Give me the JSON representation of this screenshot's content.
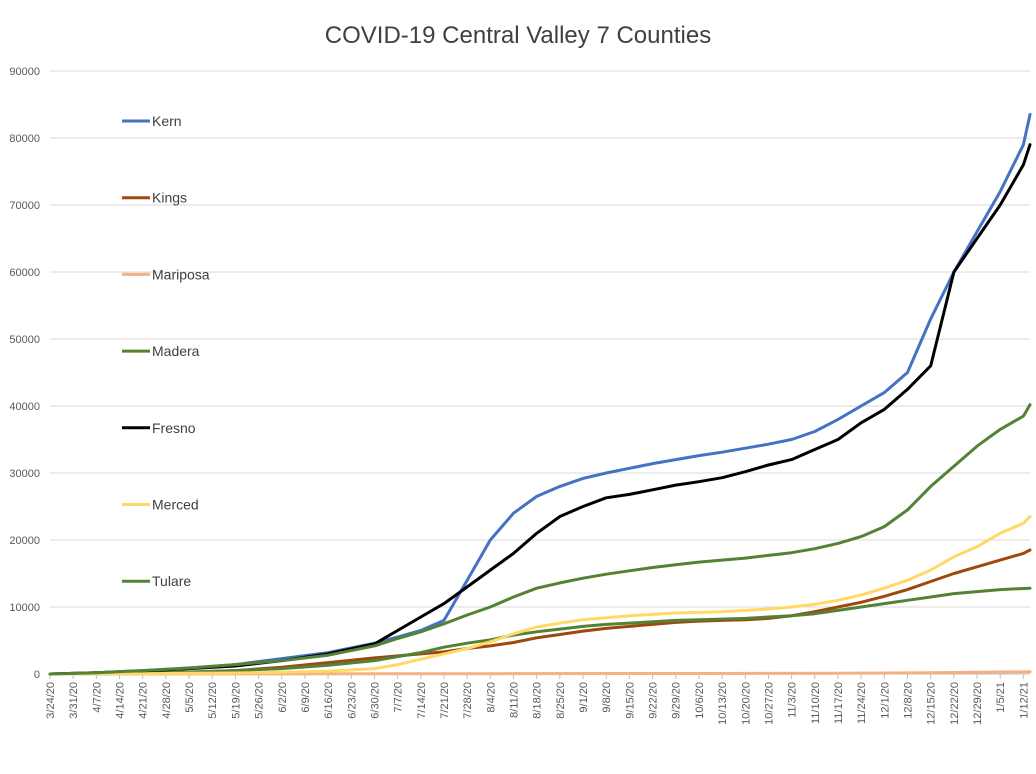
{
  "chart_data": {
    "type": "line",
    "title": "COVID-19 Central Valley 7 Counties",
    "xlabel": "",
    "ylabel": "",
    "ylim": [
      0,
      90000
    ],
    "yticks": [
      0,
      10000,
      20000,
      30000,
      40000,
      50000,
      60000,
      70000,
      80000,
      90000
    ],
    "grid": true,
    "legend_position": "left",
    "x_start": "3/24/20",
    "x_end": "1/14/21",
    "x_ticks": [
      "3/24/20",
      "3/31/20",
      "4/7/20",
      "4/14/20",
      "4/21/20",
      "4/28/20",
      "5/5/20",
      "5/12/20",
      "5/19/20",
      "5/26/20",
      "6/2/20",
      "6/9/20",
      "6/16/20",
      "6/23/20",
      "6/30/20",
      "7/7/20",
      "7/14/20",
      "7/21/20",
      "7/28/20",
      "8/4/20",
      "8/11/20",
      "8/18/20",
      "8/25/20",
      "9/1/20",
      "9/8/20",
      "9/15/20",
      "9/22/20",
      "9/29/20",
      "10/6/20",
      "10/13/20",
      "10/20/20",
      "10/27/20",
      "11/3/20",
      "11/10/20",
      "11/17/20",
      "11/24/20",
      "12/1/20",
      "12/8/20",
      "12/15/20",
      "12/22/20",
      "12/29/20",
      "1/5/21",
      "1/12/21"
    ],
    "series": [
      {
        "name": "Kern",
        "color": "#4472C4",
        "points": [
          [
            "3/24/20",
            0
          ],
          [
            "4/7/20",
            200
          ],
          [
            "4/21/20",
            500
          ],
          [
            "5/5/20",
            900
          ],
          [
            "5/19/20",
            1400
          ],
          [
            "6/2/20",
            2300
          ],
          [
            "6/16/20",
            3200
          ],
          [
            "6/30/20",
            4600
          ],
          [
            "7/7/20",
            5500
          ],
          [
            "7/14/20",
            6500
          ],
          [
            "7/21/20",
            8000
          ],
          [
            "7/28/20",
            14000
          ],
          [
            "8/4/20",
            20000
          ],
          [
            "8/11/20",
            24000
          ],
          [
            "8/18/20",
            26500
          ],
          [
            "8/25/20",
            28000
          ],
          [
            "9/1/20",
            29200
          ],
          [
            "9/8/20",
            30000
          ],
          [
            "9/15/20",
            30700
          ],
          [
            "9/22/20",
            31400
          ],
          [
            "9/29/20",
            32000
          ],
          [
            "10/6/20",
            32600
          ],
          [
            "10/13/20",
            33100
          ],
          [
            "10/20/20",
            33700
          ],
          [
            "10/27/20",
            34300
          ],
          [
            "11/3/20",
            35000
          ],
          [
            "11/10/20",
            36200
          ],
          [
            "11/17/20",
            38000
          ],
          [
            "11/24/20",
            40000
          ],
          [
            "12/1/20",
            42000
          ],
          [
            "12/8/20",
            45000
          ],
          [
            "12/15/20",
            53000
          ],
          [
            "12/22/20",
            60000
          ],
          [
            "12/29/20",
            66000
          ],
          [
            "1/5/21",
            72000
          ],
          [
            "1/12/21",
            79000
          ],
          [
            "1/14/21",
            83500
          ]
        ]
      },
      {
        "name": "Kings",
        "color": "#9E480E",
        "points": [
          [
            "3/24/20",
            0
          ],
          [
            "4/7/20",
            50
          ],
          [
            "4/21/20",
            100
          ],
          [
            "5/5/20",
            250
          ],
          [
            "5/19/20",
            500
          ],
          [
            "6/2/20",
            1000
          ],
          [
            "6/16/20",
            1700
          ],
          [
            "6/30/20",
            2400
          ],
          [
            "7/7/20",
            2700
          ],
          [
            "7/14/20",
            3000
          ],
          [
            "7/21/20",
            3300
          ],
          [
            "7/28/20",
            3800
          ],
          [
            "8/4/20",
            4200
          ],
          [
            "8/11/20",
            4700
          ],
          [
            "8/18/20",
            5400
          ],
          [
            "8/25/20",
            5900
          ],
          [
            "9/1/20",
            6400
          ],
          [
            "9/8/20",
            6800
          ],
          [
            "9/15/20",
            7100
          ],
          [
            "9/22/20",
            7400
          ],
          [
            "9/29/20",
            7700
          ],
          [
            "10/6/20",
            7900
          ],
          [
            "10/13/20",
            8000
          ],
          [
            "10/20/20",
            8100
          ],
          [
            "10/27/20",
            8300
          ],
          [
            "11/3/20",
            8700
          ],
          [
            "11/10/20",
            9300
          ],
          [
            "11/17/20",
            10000
          ],
          [
            "11/24/20",
            10700
          ],
          [
            "12/1/20",
            11600
          ],
          [
            "12/8/20",
            12600
          ],
          [
            "12/15/20",
            13800
          ],
          [
            "12/22/20",
            15000
          ],
          [
            "12/29/20",
            16000
          ],
          [
            "1/5/21",
            17000
          ],
          [
            "1/12/21",
            18000
          ],
          [
            "1/14/21",
            18500
          ]
        ]
      },
      {
        "name": "Mariposa",
        "color": "#F4B183",
        "points": [
          [
            "3/24/20",
            0
          ],
          [
            "6/2/20",
            10
          ],
          [
            "8/4/20",
            40
          ],
          [
            "10/6/20",
            70
          ],
          [
            "11/17/20",
            100
          ],
          [
            "12/15/20",
            180
          ],
          [
            "1/5/21",
            300
          ],
          [
            "1/14/21",
            350
          ]
        ]
      },
      {
        "name": "Madera",
        "color": "#548235",
        "points": [
          [
            "3/24/20",
            0
          ],
          [
            "4/7/20",
            50
          ],
          [
            "4/21/20",
            150
          ],
          [
            "5/5/20",
            300
          ],
          [
            "5/19/20",
            500
          ],
          [
            "6/2/20",
            800
          ],
          [
            "6/16/20",
            1300
          ],
          [
            "6/30/20",
            2000
          ],
          [
            "7/7/20",
            2600
          ],
          [
            "7/14/20",
            3200
          ],
          [
            "7/21/20",
            4000
          ],
          [
            "7/28/20",
            4600
          ],
          [
            "8/4/20",
            5100
          ],
          [
            "8/11/20",
            5800
          ],
          [
            "8/18/20",
            6300
          ],
          [
            "8/25/20",
            6700
          ],
          [
            "9/1/20",
            7100
          ],
          [
            "9/8/20",
            7400
          ],
          [
            "9/15/20",
            7600
          ],
          [
            "9/22/20",
            7800
          ],
          [
            "9/29/20",
            8000
          ],
          [
            "10/6/20",
            8100
          ],
          [
            "10/13/20",
            8200
          ],
          [
            "10/20/20",
            8300
          ],
          [
            "10/27/20",
            8500
          ],
          [
            "11/3/20",
            8700
          ],
          [
            "11/10/20",
            9000
          ],
          [
            "11/17/20",
            9500
          ],
          [
            "11/24/20",
            10000
          ],
          [
            "12/1/20",
            10500
          ],
          [
            "12/8/20",
            11000
          ],
          [
            "12/15/20",
            11500
          ],
          [
            "12/22/20",
            12000
          ],
          [
            "12/29/20",
            12300
          ],
          [
            "1/5/21",
            12600
          ],
          [
            "1/14/21",
            12800
          ]
        ]
      },
      {
        "name": "Fresno",
        "color": "#000000",
        "points": [
          [
            "3/24/20",
            0
          ],
          [
            "4/7/20",
            200
          ],
          [
            "4/21/20",
            450
          ],
          [
            "5/5/20",
            800
          ],
          [
            "5/19/20",
            1200
          ],
          [
            "6/2/20",
            2000
          ],
          [
            "6/16/20",
            3000
          ],
          [
            "6/30/20",
            4500
          ],
          [
            "7/7/20",
            6500
          ],
          [
            "7/14/20",
            8500
          ],
          [
            "7/21/20",
            10500
          ],
          [
            "7/28/20",
            13000
          ],
          [
            "8/4/20",
            15500
          ],
          [
            "8/11/20",
            18000
          ],
          [
            "8/18/20",
            21000
          ],
          [
            "8/25/20",
            23500
          ],
          [
            "9/1/20",
            25000
          ],
          [
            "9/8/20",
            26300
          ],
          [
            "9/15/20",
            26800
          ],
          [
            "9/22/20",
            27500
          ],
          [
            "9/29/20",
            28200
          ],
          [
            "10/6/20",
            28700
          ],
          [
            "10/13/20",
            29300
          ],
          [
            "10/20/20",
            30200
          ],
          [
            "10/27/20",
            31200
          ],
          [
            "11/3/20",
            32000
          ],
          [
            "11/10/20",
            33500
          ],
          [
            "11/17/20",
            35000
          ],
          [
            "11/24/20",
            37500
          ],
          [
            "12/1/20",
            39500
          ],
          [
            "12/8/20",
            42500
          ],
          [
            "12/15/20",
            46000
          ],
          [
            "12/22/20",
            60000
          ],
          [
            "12/29/20",
            65000
          ],
          [
            "1/5/21",
            70000
          ],
          [
            "1/12/21",
            76000
          ],
          [
            "1/14/21",
            79000
          ]
        ]
      },
      {
        "name": "Merced",
        "color": "#FFD966",
        "points": [
          [
            "3/24/20",
            0
          ],
          [
            "4/7/20",
            20
          ],
          [
            "4/21/20",
            50
          ],
          [
            "5/5/20",
            100
          ],
          [
            "5/19/20",
            150
          ],
          [
            "6/2/20",
            250
          ],
          [
            "6/16/20",
            400
          ],
          [
            "6/30/20",
            800
          ],
          [
            "7/7/20",
            1400
          ],
          [
            "7/14/20",
            2200
          ],
          [
            "7/21/20",
            3000
          ],
          [
            "7/28/20",
            3800
          ],
          [
            "8/4/20",
            4800
          ],
          [
            "8/11/20",
            6000
          ],
          [
            "8/18/20",
            7000
          ],
          [
            "8/25/20",
            7600
          ],
          [
            "9/1/20",
            8100
          ],
          [
            "9/8/20",
            8400
          ],
          [
            "9/15/20",
            8700
          ],
          [
            "9/22/20",
            8900
          ],
          [
            "9/29/20",
            9100
          ],
          [
            "10/6/20",
            9200
          ],
          [
            "10/13/20",
            9300
          ],
          [
            "10/20/20",
            9500
          ],
          [
            "10/27/20",
            9700
          ],
          [
            "11/3/20",
            10000
          ],
          [
            "11/10/20",
            10400
          ],
          [
            "11/17/20",
            11000
          ],
          [
            "11/24/20",
            11800
          ],
          [
            "12/1/20",
            12800
          ],
          [
            "12/8/20",
            14000
          ],
          [
            "12/15/20",
            15500
          ],
          [
            "12/22/20",
            17500
          ],
          [
            "12/29/20",
            19000
          ],
          [
            "1/5/21",
            21000
          ],
          [
            "1/12/21",
            22500
          ],
          [
            "1/14/21",
            23500
          ]
        ]
      },
      {
        "name": "Tulare",
        "color": "#548235",
        "points": [
          [
            "3/24/20",
            0
          ],
          [
            "4/7/20",
            200
          ],
          [
            "4/21/20",
            500
          ],
          [
            "5/5/20",
            900
          ],
          [
            "5/19/20",
            1400
          ],
          [
            "6/2/20",
            2000
          ],
          [
            "6/16/20",
            2800
          ],
          [
            "6/30/20",
            4200
          ],
          [
            "7/7/20",
            5300
          ],
          [
            "7/14/20",
            6300
          ],
          [
            "7/21/20",
            7500
          ],
          [
            "7/28/20",
            8800
          ],
          [
            "8/4/20",
            10000
          ],
          [
            "8/11/20",
            11500
          ],
          [
            "8/18/20",
            12800
          ],
          [
            "8/25/20",
            13600
          ],
          [
            "9/1/20",
            14300
          ],
          [
            "9/8/20",
            14900
          ],
          [
            "9/15/20",
            15400
          ],
          [
            "9/22/20",
            15900
          ],
          [
            "9/29/20",
            16300
          ],
          [
            "10/6/20",
            16700
          ],
          [
            "10/13/20",
            17000
          ],
          [
            "10/20/20",
            17300
          ],
          [
            "10/27/20",
            17700
          ],
          [
            "11/3/20",
            18100
          ],
          [
            "11/10/20",
            18700
          ],
          [
            "11/17/20",
            19500
          ],
          [
            "11/24/20",
            20500
          ],
          [
            "12/1/20",
            22000
          ],
          [
            "12/8/20",
            24500
          ],
          [
            "12/15/20",
            28000
          ],
          [
            "12/22/20",
            31000
          ],
          [
            "12/29/20",
            34000
          ],
          [
            "1/5/21",
            36500
          ],
          [
            "1/12/21",
            38500
          ],
          [
            "1/14/21",
            40200
          ]
        ]
      }
    ]
  }
}
